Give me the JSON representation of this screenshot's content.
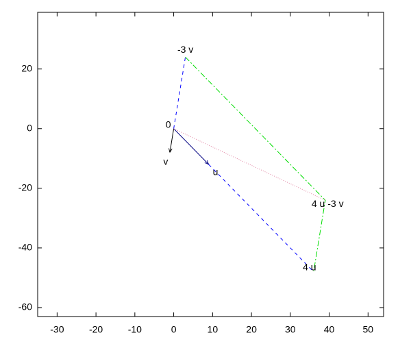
{
  "chart_data": {
    "type": "vector",
    "xlim": [
      -35,
      54
    ],
    "ylim": [
      -63,
      39
    ],
    "xticks": [
      -30,
      -20,
      -10,
      0,
      10,
      20,
      30,
      40,
      50
    ],
    "yticks": [
      -60,
      -40,
      -20,
      0,
      20
    ],
    "series": [
      {
        "color": "#000080",
        "line_style": "solid",
        "arrow": true,
        "x": [
          0,
          9
        ],
        "y": [
          0,
          -12
        ]
      },
      {
        "color": "#000000",
        "line_style": "solid",
        "arrow": true,
        "x": [
          0,
          -1
        ],
        "y": [
          0,
          -8
        ]
      },
      {
        "color": "#0000ff",
        "line_style": "dashed",
        "arrow": false,
        "x": [
          9,
          36
        ],
        "y": [
          -12,
          -48
        ]
      },
      {
        "color": "#0000ff",
        "line_style": "dashed",
        "arrow": false,
        "x": [
          0,
          3
        ],
        "y": [
          0,
          24
        ]
      },
      {
        "color": "#00dd00",
        "line_style": "dashdot",
        "arrow": false,
        "x": [
          3,
          39,
          36
        ],
        "y": [
          24,
          -24,
          -48
        ]
      },
      {
        "color": "#e080a0",
        "line_style": "dotted",
        "arrow": false,
        "x": [
          0,
          39
        ],
        "y": [
          0,
          -24
        ]
      }
    ],
    "annotations": [
      {
        "text": "0",
        "x": 0,
        "y": 0
      },
      {
        "text": "v",
        "x": -1,
        "y": -8
      },
      {
        "text": "u",
        "x": 9,
        "y": -12
      },
      {
        "text": "-3 v",
        "x": 3,
        "y": 24
      },
      {
        "text": "4 u -3 v",
        "x": 39,
        "y": -24
      },
      {
        "text": "4 u",
        "x": 36,
        "y": -48
      }
    ]
  }
}
